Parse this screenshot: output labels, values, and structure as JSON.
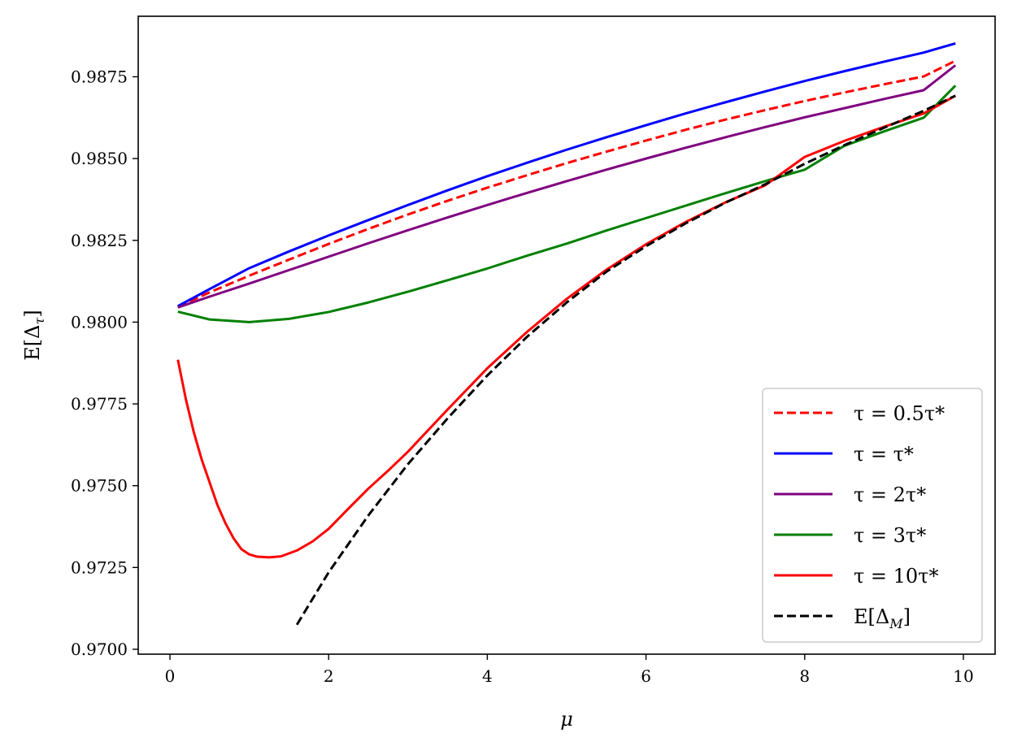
{
  "chart_data": {
    "type": "line",
    "title": "",
    "xlabel": "μ",
    "ylabel": "E[Δ_τ]",
    "xlim": [
      -0.4,
      10.4
    ],
    "ylim": [
      0.96985,
      0.98935
    ],
    "xticks": [
      0,
      2,
      4,
      6,
      8,
      10
    ],
    "xtick_labels": [
      "0",
      "2",
      "4",
      "6",
      "8",
      "10"
    ],
    "yticks": [
      0.97,
      0.9725,
      0.975,
      0.9775,
      0.98,
      0.9825,
      0.985,
      0.9875
    ],
    "ytick_labels": [
      "0.9700",
      "0.9725",
      "0.9750",
      "0.9775",
      "0.9800",
      "0.9825",
      "0.9850",
      "0.9875"
    ],
    "grid": false,
    "legend_position": "lower-right",
    "series": [
      {
        "name": "τ = 0.5τ*",
        "color": "#ff0000",
        "dash": "dashed",
        "x": [
          0.1,
          0.5,
          1,
          1.5,
          2,
          2.5,
          3,
          3.5,
          4,
          4.5,
          5,
          5.5,
          6,
          6.5,
          7,
          7.5,
          8,
          8.5,
          9,
          9.5,
          9.9
        ],
        "y": [
          0.98047,
          0.98091,
          0.98142,
          0.98191,
          0.98239,
          0.98285,
          0.98329,
          0.98371,
          0.98411,
          0.98449,
          0.98486,
          0.98521,
          0.98555,
          0.98588,
          0.98619,
          0.98648,
          0.98676,
          0.98702,
          0.98727,
          0.98751,
          0.98799
        ]
      },
      {
        "name": "τ = τ*",
        "color": "#0000ff",
        "dash": "solid",
        "x": [
          0.1,
          0.5,
          1,
          1.5,
          2,
          2.5,
          3,
          3.5,
          4,
          4.5,
          5,
          5.5,
          6,
          6.5,
          7,
          7.5,
          8,
          8.5,
          9,
          9.5,
          9.9
        ],
        "y": [
          0.98049,
          0.98101,
          0.98165,
          0.98216,
          0.98265,
          0.98312,
          0.98358,
          0.98403,
          0.98446,
          0.98487,
          0.98527,
          0.98565,
          0.98602,
          0.98638,
          0.98672,
          0.98705,
          0.98737,
          0.98767,
          0.98796,
          0.98824,
          0.98852
        ]
      },
      {
        "name": "τ = 2τ*",
        "color": "#800080",
        "dash": "solid",
        "x": [
          0.1,
          0.5,
          1,
          1.5,
          2,
          2.5,
          3,
          3.5,
          4,
          4.5,
          5,
          5.5,
          6,
          6.5,
          7,
          7.5,
          8,
          8.5,
          9,
          9.5,
          9.9
        ],
        "y": [
          0.98045,
          0.98078,
          0.98118,
          0.98159,
          0.982,
          0.98241,
          0.98281,
          0.9832,
          0.98358,
          0.98395,
          0.98431,
          0.98466,
          0.985,
          0.98533,
          0.98565,
          0.98596,
          0.98626,
          0.98654,
          0.98682,
          0.98709,
          0.98785
        ]
      },
      {
        "name": "τ = 3τ*",
        "color": "#008000",
        "dash": "solid",
        "x": [
          0.1,
          0.5,
          1,
          1.5,
          2,
          2.5,
          3,
          3.5,
          4,
          4.5,
          5,
          5.5,
          6,
          6.5,
          7,
          7.5,
          8,
          8.5,
          9,
          9.5,
          9.9
        ],
        "y": [
          0.98032,
          0.98008,
          0.98,
          0.9801,
          0.98031,
          0.9806,
          0.98093,
          0.98128,
          0.98164,
          0.98203,
          0.9824,
          0.9828,
          0.98318,
          0.98356,
          0.98394,
          0.98431,
          0.98466,
          0.98539,
          0.98583,
          0.98625,
          0.98723
        ]
      },
      {
        "name": "τ = 10τ*",
        "color": "#ff0000",
        "dash": "solid",
        "x": [
          0.1,
          0.2,
          0.3,
          0.4,
          0.5,
          0.6,
          0.7,
          0.8,
          0.9,
          1.0,
          1.1,
          1.25,
          1.4,
          1.6,
          1.8,
          2.0,
          2.25,
          2.5,
          2.75,
          3.0,
          3.5,
          4.0,
          4.5,
          5.0,
          5.5,
          6.0,
          6.5,
          7.0,
          7.5,
          8.0,
          8.5,
          9.0,
          9.5,
          9.9
        ],
        "y": [
          0.97885,
          0.97765,
          0.97664,
          0.9758,
          0.9751,
          0.9744,
          0.97385,
          0.9734,
          0.97306,
          0.9729,
          0.97283,
          0.97281,
          0.97284,
          0.97302,
          0.9733,
          0.97368,
          0.9743,
          0.97491,
          0.97546,
          0.97604,
          0.97733,
          0.97859,
          0.9797,
          0.98071,
          0.9816,
          0.98238,
          0.98306,
          0.98366,
          0.98418,
          0.98505,
          0.98554,
          0.98597,
          0.98638,
          0.98692
        ]
      },
      {
        "name": "E[Δ_M]",
        "color": "#000000",
        "dash": "dashed",
        "x": [
          1.6,
          2.0,
          2.5,
          3.0,
          3.5,
          4.0,
          4.5,
          5.0,
          5.5,
          6.0,
          6.5,
          7.0,
          7.5,
          8.0,
          8.5,
          9.0,
          9.5,
          9.9
        ],
        "y": [
          0.97075,
          0.97235,
          0.97409,
          0.97566,
          0.97706,
          0.97837,
          0.97955,
          0.9806,
          0.98154,
          0.98232,
          0.98302,
          0.98365,
          0.98421,
          0.98484,
          0.98541,
          0.98594,
          0.98646,
          0.98692
        ]
      }
    ]
  }
}
